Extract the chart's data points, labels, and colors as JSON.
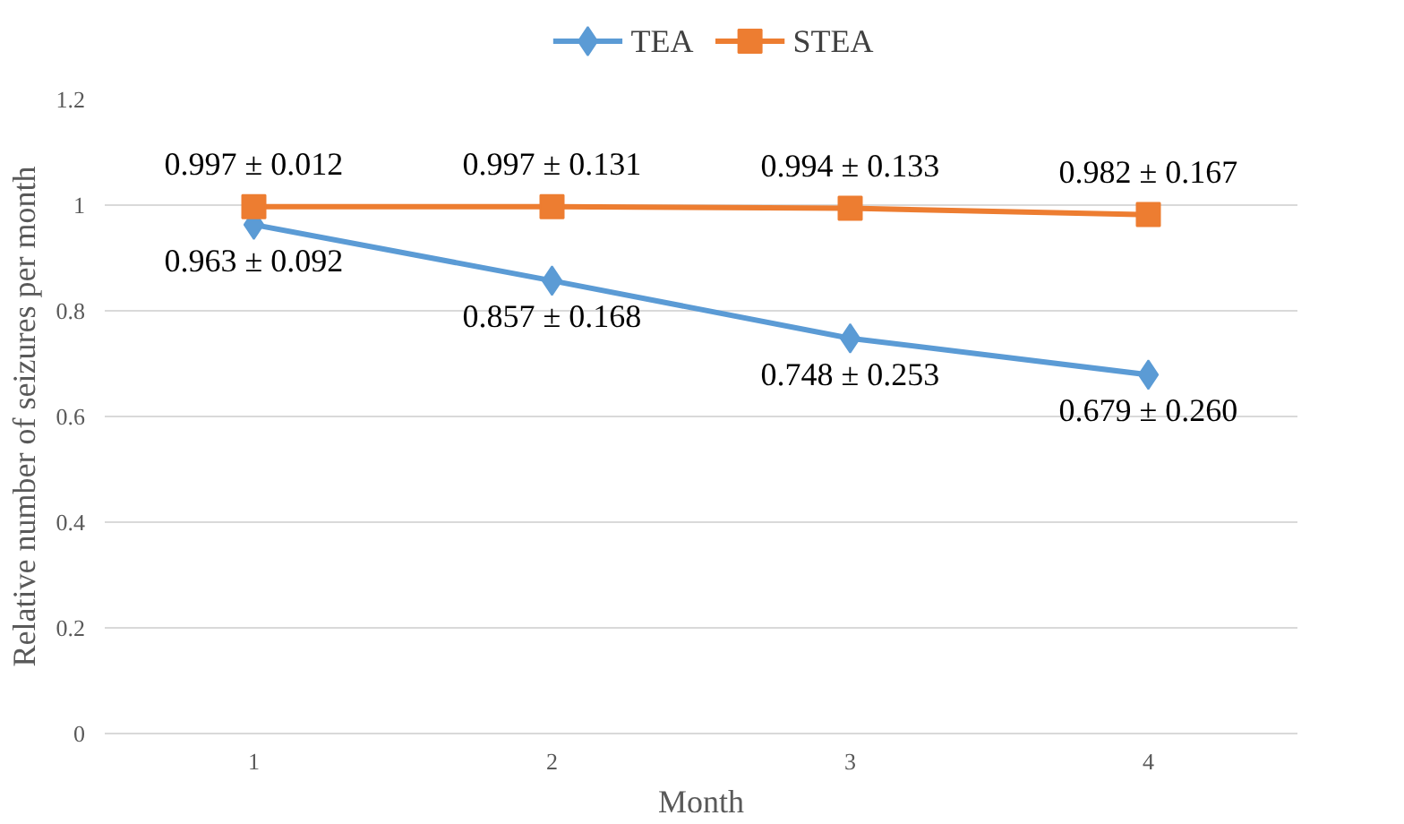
{
  "chart_data": {
    "type": "line",
    "xlabel": "Month",
    "ylabel": "Relative number of seizures per month",
    "categories": [
      "1",
      "2",
      "3",
      "4"
    ],
    "series": [
      {
        "name": "TEA",
        "color": "#5b9bd5",
        "marker": "diamond",
        "values": [
          0.963,
          0.857,
          0.748,
          0.679
        ],
        "value_labels": [
          "0.963 ± 0.092",
          "0.857 ± 0.168",
          "0.748 ± 0.253",
          "0.679 ± 0.260"
        ]
      },
      {
        "name": "STEA",
        "color": "#ed7d31",
        "marker": "square",
        "values": [
          0.997,
          0.997,
          0.994,
          0.982
        ],
        "value_labels": [
          "0.997 ± 0.012",
          "0.997 ± 0.131",
          "0.994 ± 0.133",
          "0.982 ± 0.167"
        ]
      }
    ],
    "ylim": [
      0,
      1.2
    ],
    "yticks": [
      0,
      0.2,
      0.4,
      0.6,
      0.8,
      1,
      1.2
    ],
    "grid": "y",
    "legend": "top",
    "line_style": "solid"
  }
}
